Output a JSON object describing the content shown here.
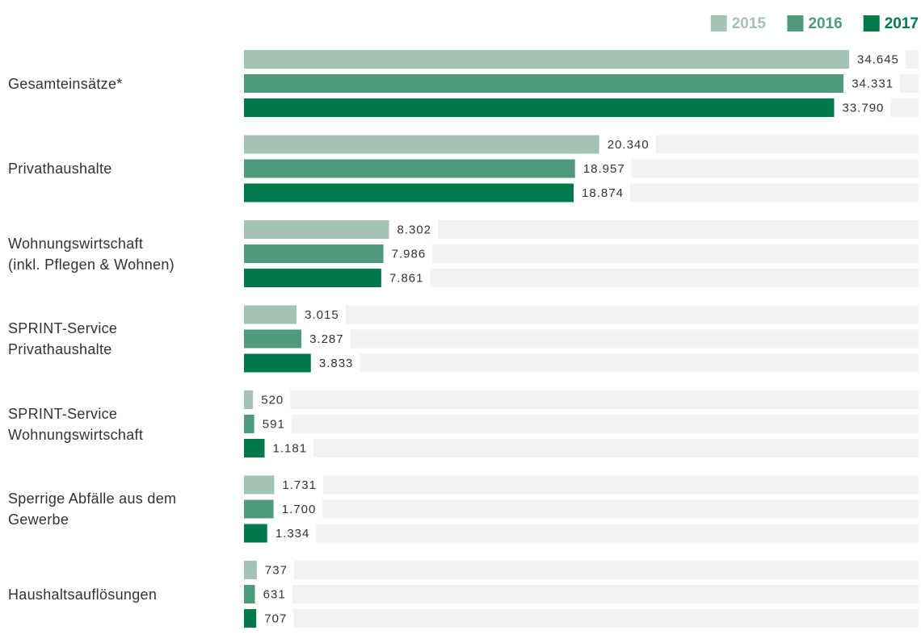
{
  "chart_data": {
    "type": "bar",
    "orientation": "horizontal",
    "categories": [
      "Gesamteinsätze*",
      "Privathaushalte",
      "Wohnungswirtschaft\n(inkl. Pflegen & Wohnen)",
      "SPRINT-Service\nPrivathaushalte",
      "SPRINT-Service\nWohnungswirtschaft",
      "Sperrige Abfälle aus dem\nGewerbe",
      "Haushaltsauflösungen"
    ],
    "series": [
      {
        "name": "2015",
        "color": "#a3c4b5",
        "values": [
          34645,
          20340,
          8302,
          3015,
          520,
          1731,
          737
        ],
        "value_labels": [
          "34.645",
          "20.340",
          "8.302",
          "3.015",
          "520",
          "1.731",
          "737"
        ]
      },
      {
        "name": "2016",
        "color": "#4f9a7b",
        "values": [
          34331,
          18957,
          7986,
          3287,
          591,
          1700,
          631
        ],
        "value_labels": [
          "34.331",
          "18.957",
          "7.986",
          "3.287",
          "591",
          "1.700",
          "631"
        ]
      },
      {
        "name": "2017",
        "color": "#00794a",
        "values": [
          33790,
          18874,
          7861,
          3833,
          1181,
          1334,
          707
        ],
        "value_labels": [
          "33.790",
          "18.874",
          "7.861",
          "3.833",
          "1.181",
          "1.334",
          "707"
        ]
      }
    ],
    "legend": "top-right"
  }
}
